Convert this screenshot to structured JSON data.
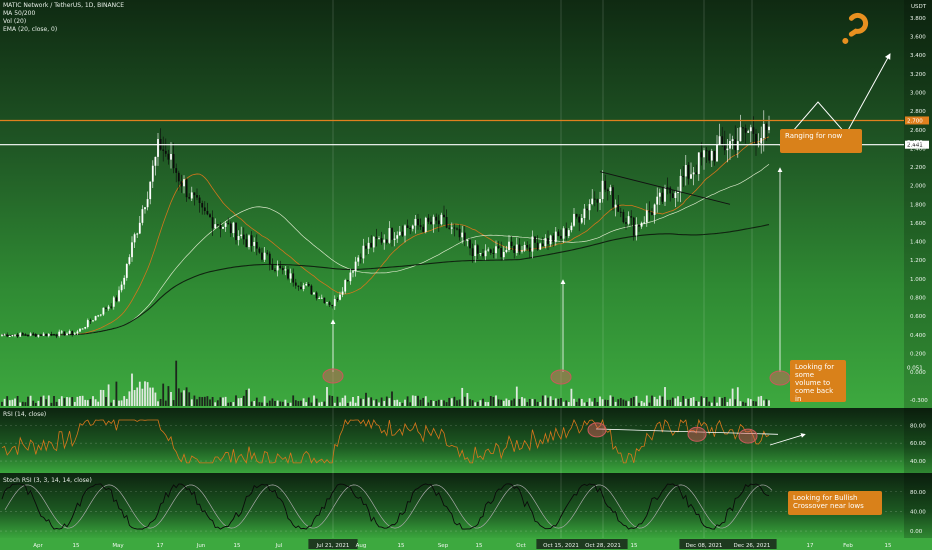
{
  "chart_data": {
    "type": "candlestick",
    "title": "MATIC Network / TetherUS, 1D, BINANCE",
    "indicators": [
      "MA 50/200",
      "Vol (20)",
      "EMA (20, close, 0)"
    ],
    "price_axis": {
      "unit": "USDT",
      "ylim": [
        -0.3,
        3.95
      ],
      "ticks": [
        "-0.300",
        "0.000",
        "0.200",
        "0.400",
        "0.600",
        "0.800",
        "1.000",
        "1.200",
        "1.400",
        "1.600",
        "1.800",
        "2.000",
        "2.200",
        "2.400",
        "2.600",
        "2.800",
        "3.000",
        "3.200",
        "3.400",
        "3.600",
        "3.800"
      ],
      "price_labels": [
        "2.700",
        "2.470",
        "2.441",
        "0.051"
      ]
    },
    "levels": [
      {
        "price": 2.7,
        "color": "#e0801e",
        "label": "2.700"
      },
      {
        "price": 2.44,
        "color": "#ffffff",
        "label": "2.441"
      }
    ],
    "x_axis": {
      "ticks": [
        "Apr",
        "15",
        "May",
        "17",
        "Jun",
        "15",
        "Jul",
        "Jul 21, 2021",
        "Aug",
        "15",
        "Sep",
        "15",
        "Oct",
        "Oct 15, 2021",
        "Oct 28, 2021",
        "15",
        "Dec 08, 2021",
        "Dec 26, 2021",
        "17",
        "Feb",
        "15"
      ],
      "highlighted": [
        "Jul 21, 2021",
        "Oct 15, 2021",
        "Oct 28, 2021",
        "Dec 08, 2021",
        "Dec 26, 2021"
      ]
    },
    "price_path_usdt": [
      {
        "date": "Apr",
        "close": 0.4
      },
      {
        "date": "15",
        "close": 0.42
      },
      {
        "date": "May",
        "close": 0.8
      },
      {
        "date": "17",
        "close": 2.45
      },
      {
        "date": "Jun",
        "close": 1.7
      },
      {
        "date": "15",
        "close": 1.5
      },
      {
        "date": "Jul",
        "close": 1.1
      },
      {
        "date": "Jul 21, 2021",
        "close": 0.72
      },
      {
        "date": "Aug",
        "close": 1.3
      },
      {
        "date": "15",
        "close": 1.55
      },
      {
        "date": "Sep",
        "close": 1.6
      },
      {
        "date": "15",
        "close": 1.25
      },
      {
        "date": "Oct",
        "close": 1.35
      },
      {
        "date": "Oct 15, 2021",
        "close": 1.45
      },
      {
        "date": "Oct 28, 2021",
        "close": 2.0
      },
      {
        "date": "15",
        "close": 1.55
      },
      {
        "date": "Dec 08, 2021",
        "close": 2.3
      },
      {
        "date": "Dec 26, 2021",
        "close": 2.6
      }
    ],
    "rsi": {
      "label": "RSI (14, close)",
      "ticks": [
        "80.00",
        "60.00",
        "40.00"
      ],
      "ylim": [
        30,
        95
      ]
    },
    "stoch_rsi": {
      "label": "Stoch RSI (3, 3, 14, 14, close)",
      "ticks": [
        "80.00",
        "40.00",
        "0.00"
      ],
      "ylim": [
        -10,
        110
      ]
    },
    "annotations": {
      "ranging": "Ranging for now",
      "volume": "Looking for some volume to come back in",
      "stoch": "Looking for Bullish Crossover near lows"
    }
  }
}
